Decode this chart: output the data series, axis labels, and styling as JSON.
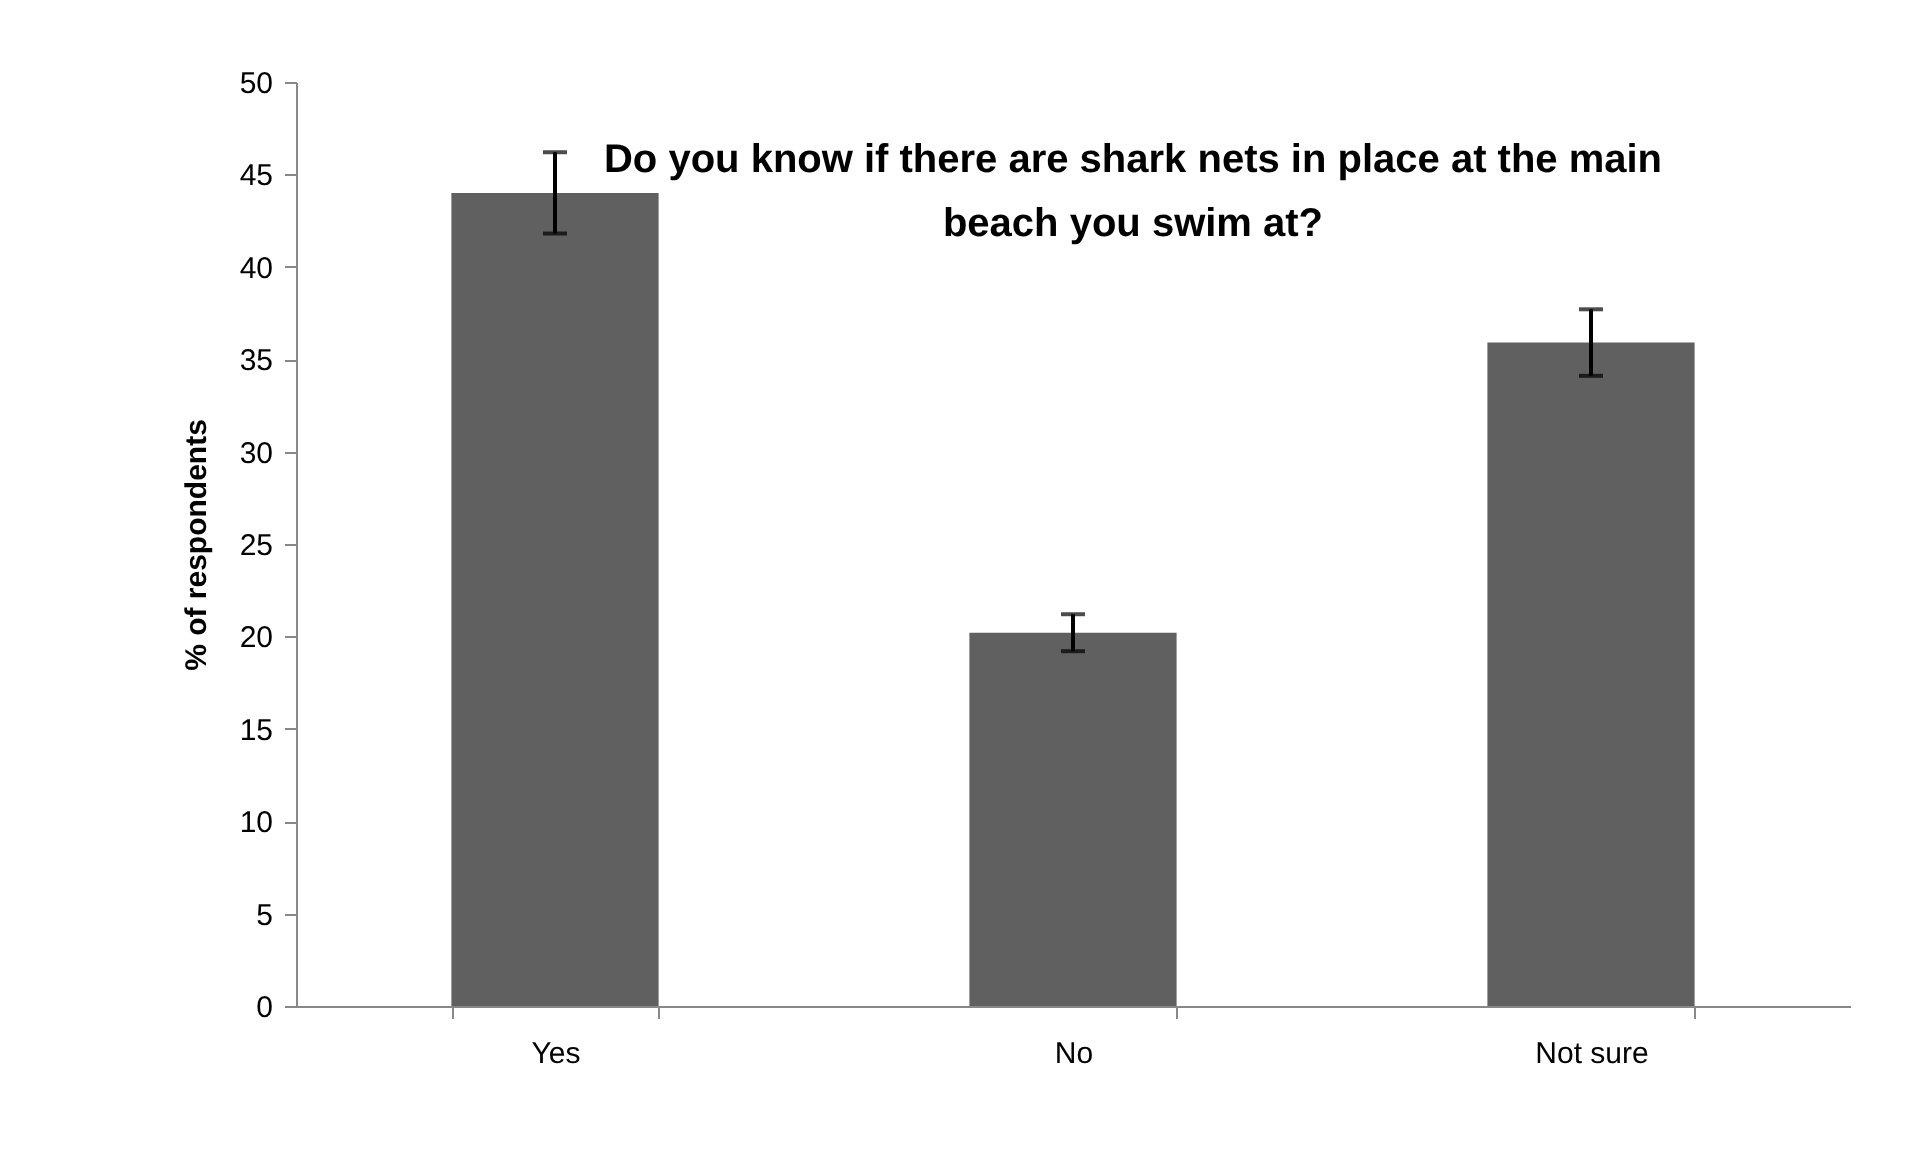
{
  "chart_data": {
    "type": "bar",
    "title": "Do you know if there are shark nets in place at the main beach you swim at?",
    "ylabel": "% of respondents",
    "categories": [
      "Yes",
      "No",
      "Not sure"
    ],
    "values": [
      44.0,
      20.2,
      35.9
    ],
    "errors": [
      2.2,
      1.0,
      1.8
    ],
    "color": "#606060",
    "ylim": [
      0,
      50
    ],
    "yticks": [
      0,
      5,
      10,
      15,
      20,
      25,
      30,
      35,
      40,
      45,
      50
    ],
    "grid": false
  }
}
